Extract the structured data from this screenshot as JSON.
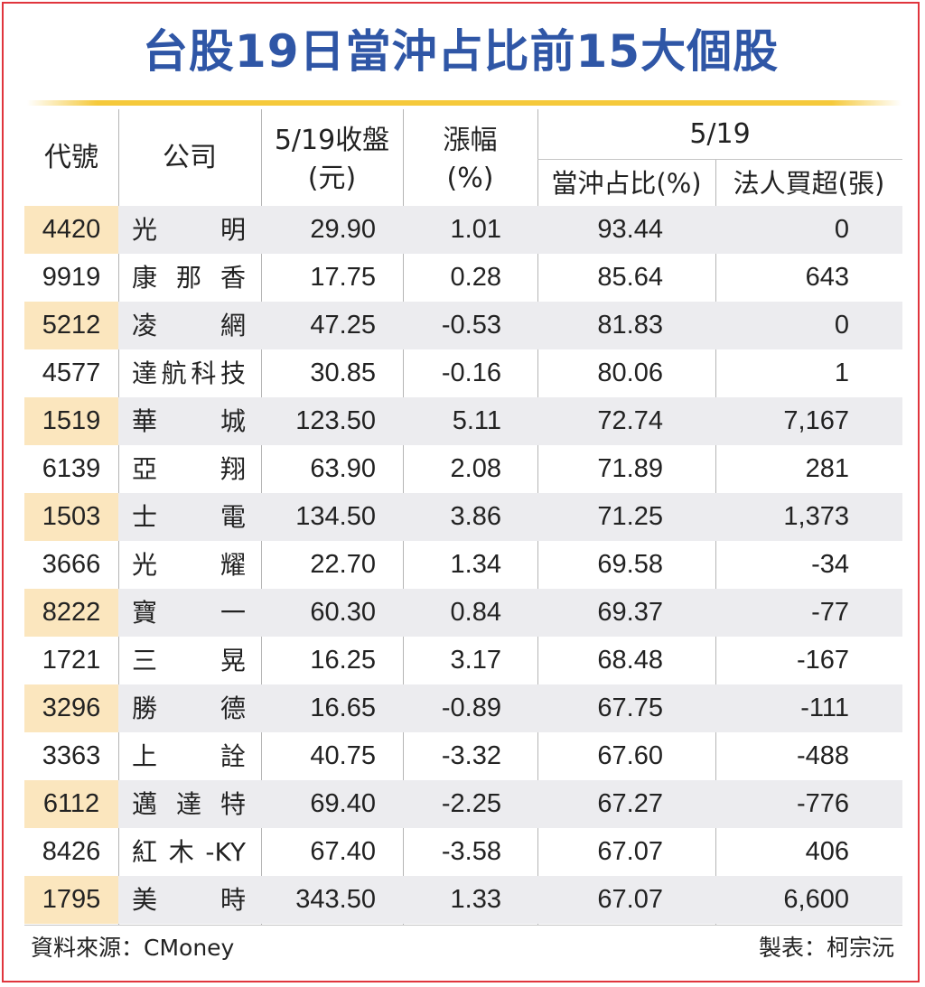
{
  "title": "台股19日當沖占比前15大個股",
  "headers": {
    "code": "代號",
    "company": "公司",
    "close_line1": "5/19收盤",
    "close_line2": "(元)",
    "change_line1": "漲幅",
    "change_line2": "(%)",
    "group": "5/19",
    "ratio": "當沖占比(%)",
    "net_buy": "法人買超(張)"
  },
  "rows": [
    {
      "code": "4420",
      "name": "光明",
      "close": "29.90",
      "change": "1.01",
      "ratio": "93.44",
      "net": "0"
    },
    {
      "code": "9919",
      "name": "康那香",
      "close": "17.75",
      "change": "0.28",
      "ratio": "85.64",
      "net": "643"
    },
    {
      "code": "5212",
      "name": "凌網",
      "close": "47.25",
      "change": "-0.53",
      "ratio": "81.83",
      "net": "0"
    },
    {
      "code": "4577",
      "name": "達航科技",
      "close": "30.85",
      "change": "-0.16",
      "ratio": "80.06",
      "net": "1"
    },
    {
      "code": "1519",
      "name": "華城",
      "close": "123.50",
      "change": "5.11",
      "ratio": "72.74",
      "net": "7,167"
    },
    {
      "code": "6139",
      "name": "亞翔",
      "close": "63.90",
      "change": "2.08",
      "ratio": "71.89",
      "net": "281"
    },
    {
      "code": "1503",
      "name": "士電",
      "close": "134.50",
      "change": "3.86",
      "ratio": "71.25",
      "net": "1,373"
    },
    {
      "code": "3666",
      "name": "光耀",
      "close": "22.70",
      "change": "1.34",
      "ratio": "69.58",
      "net": "-34"
    },
    {
      "code": "8222",
      "name": "寶一",
      "close": "60.30",
      "change": "0.84",
      "ratio": "69.37",
      "net": "-77"
    },
    {
      "code": "1721",
      "name": "三晃",
      "close": "16.25",
      "change": "3.17",
      "ratio": "68.48",
      "net": "-167"
    },
    {
      "code": "3296",
      "name": "勝德",
      "close": "16.65",
      "change": "-0.89",
      "ratio": "67.75",
      "net": "-111"
    },
    {
      "code": "3363",
      "name": "上詮",
      "close": "40.75",
      "change": "-3.32",
      "ratio": "67.60",
      "net": "-488"
    },
    {
      "code": "6112",
      "name": "邁達特",
      "close": "69.40",
      "change": "-2.25",
      "ratio": "67.27",
      "net": "-776"
    },
    {
      "code": "8426",
      "name": "紅木-KY",
      "close": "67.40",
      "change": "-3.58",
      "ratio": "67.07",
      "net": "406"
    },
    {
      "code": "1795",
      "name": "美時",
      "close": "343.50",
      "change": "1.33",
      "ratio": "67.07",
      "net": "6,600"
    }
  ],
  "footer": {
    "source": "資料來源：CMoney",
    "credit": "製表：柯宗沅"
  },
  "colors": {
    "title": "#2f56a6",
    "border": "#e0353d",
    "rule": "#f5c93b",
    "code_highlight": "#fbe6be",
    "row_stripe": "#ececef"
  }
}
